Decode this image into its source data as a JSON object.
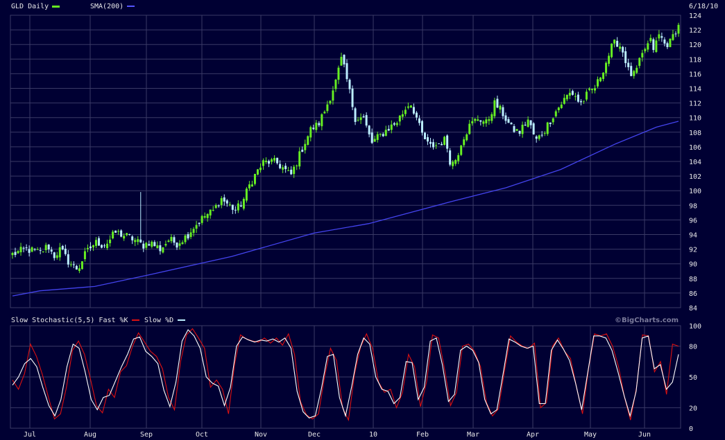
{
  "date_label": "6/18/10",
  "copyright": "©BigCharts.com",
  "price_panel": {
    "legend": [
      {
        "label": "GLD Daily",
        "color": "#66ee22"
      },
      {
        "label": "SMA(200)",
        "color": "#5555ff"
      }
    ]
  },
  "stoch_panel": {
    "legend": [
      {
        "label": "Slow Stochastic(5,5) Fast %K",
        "color": "#dd1111"
      },
      {
        "label": "Slow %D",
        "color": "#bbeeff"
      }
    ]
  },
  "colors": {
    "background": "#000033",
    "grid": "#3a3a66",
    "up": "#66ee22",
    "down": "#bbeeff",
    "sma": "#4444ee",
    "fastk": "#dd1111",
    "slowd": "#ffffff"
  },
  "chart_data": [
    {
      "type": "candlestick",
      "title": "GLD Daily",
      "x_tick_labels": [
        "Jul",
        "Aug",
        "Sep",
        "Oct",
        "Nov",
        "Dec",
        "10",
        "Feb",
        "Mar",
        "Apr",
        "May",
        "Jun"
      ],
      "y_tick_labels": [
        "84",
        "86",
        "88",
        "90",
        "92",
        "94",
        "96",
        "98",
        "100",
        "102",
        "104",
        "106",
        "108",
        "110",
        "112",
        "114",
        "116",
        "118",
        "120",
        "122",
        "124"
      ],
      "ylim": [
        84,
        124
      ],
      "price_path": [
        [
          0,
          91.3
        ],
        [
          10,
          92
        ],
        [
          20,
          91.5
        ],
        [
          26,
          92.5
        ],
        [
          30,
          91
        ],
        [
          35,
          92
        ],
        [
          40,
          90.5
        ],
        [
          45,
          89.5
        ],
        [
          48,
          89.3
        ],
        [
          52,
          91
        ],
        [
          58,
          92.5
        ],
        [
          62,
          93
        ],
        [
          66,
          92.5
        ],
        [
          70,
          93
        ],
        [
          75,
          94.3
        ],
        [
          80,
          94
        ],
        [
          88,
          93.4
        ],
        [
          95,
          92.5
        ],
        [
          100,
          93
        ],
        [
          108,
          92
        ],
        [
          114,
          93.3
        ],
        [
          120,
          92.8
        ],
        [
          127,
          93.8
        ],
        [
          132,
          95
        ],
        [
          140,
          96.5
        ],
        [
          147,
          97.3
        ],
        [
          152,
          99
        ],
        [
          158,
          98
        ],
        [
          163,
          97.3
        ],
        [
          168,
          98.5
        ],
        [
          173,
          100.8
        ],
        [
          178,
          102.5
        ],
        [
          183,
          103.8
        ],
        [
          188,
          104
        ],
        [
          193,
          103.8
        ],
        [
          198,
          103
        ],
        [
          203,
          102
        ],
        [
          208,
          104.2
        ],
        [
          213,
          106.5
        ],
        [
          218,
          108.5
        ],
        [
          223,
          109
        ],
        [
          228,
          111
        ],
        [
          232,
          113
        ],
        [
          236,
          115
        ],
        [
          240,
          118
        ],
        [
          243,
          116
        ],
        [
          246,
          113.5
        ],
        [
          250,
          110
        ],
        [
          256,
          110
        ],
        [
          262,
          106.5
        ],
        [
          268,
          107.5
        ],
        [
          274,
          108.5
        ],
        [
          280,
          109.3
        ],
        [
          286,
          111
        ],
        [
          290,
          112.2
        ],
        [
          294,
          110.5
        ],
        [
          298,
          108
        ],
        [
          304,
          106
        ],
        [
          310,
          106.3
        ],
        [
          316,
          107
        ],
        [
          320,
          103.5
        ],
        [
          324,
          104.5
        ],
        [
          328,
          107
        ],
        [
          334,
          109
        ],
        [
          340,
          110
        ],
        [
          346,
          109.2
        ],
        [
          352,
          112
        ],
        [
          358,
          110.5
        ],
        [
          364,
          108.5
        ],
        [
          370,
          108
        ],
        [
          376,
          109.8
        ],
        [
          382,
          106.8
        ],
        [
          388,
          108.2
        ],
        [
          394,
          110.2
        ],
        [
          400,
          111.8
        ],
        [
          406,
          113.3
        ],
        [
          410,
          113.3
        ],
        [
          414,
          111.8
        ],
        [
          420,
          113.3
        ],
        [
          426,
          114.3
        ],
        [
          430,
          116.2
        ],
        [
          434,
          118
        ],
        [
          438,
          120
        ],
        [
          442,
          120.3
        ],
        [
          446,
          118.8
        ],
        [
          450,
          116
        ],
        [
          454,
          115.8
        ],
        [
          458,
          117.8
        ],
        [
          462,
          119.6
        ],
        [
          466,
          120.5
        ],
        [
          468,
          119.3
        ],
        [
          472,
          121.4
        ],
        [
          476,
          120
        ],
        [
          480,
          120.3
        ],
        [
          484,
          122
        ],
        [
          486,
          122.5
        ]
      ],
      "sma200_values": [
        [
          0,
          85.6
        ],
        [
          20,
          86.3
        ],
        [
          60,
          86.9
        ],
        [
          100,
          88.5
        ],
        [
          160,
          91
        ],
        [
          220,
          94.2
        ],
        [
          260,
          95.5
        ],
        [
          320,
          98.5
        ],
        [
          360,
          100.4
        ],
        [
          400,
          102.9
        ],
        [
          440,
          106.4
        ],
        [
          470,
          108.7
        ],
        [
          486,
          109.5
        ]
      ],
      "legend": [
        "GLD Daily",
        "SMA(200)"
      ]
    },
    {
      "type": "line",
      "title": "Slow Stochastic(5,5)",
      "y_tick_labels": [
        "0",
        "20",
        "50",
        "80",
        "100"
      ],
      "ylim": [
        0,
        100
      ],
      "series": [
        {
          "name": "Fast %K",
          "values": [
            47,
            38,
            53,
            82,
            70,
            52,
            30,
            9,
            14,
            40,
            76,
            85,
            72,
            48,
            22,
            15,
            38,
            30,
            55,
            61,
            80,
            93,
            84,
            75,
            70,
            58,
            30,
            18,
            65,
            91,
            97,
            88,
            78,
            40,
            47,
            38,
            14,
            62,
            91,
            87,
            85,
            84,
            88,
            83,
            88,
            81,
            92,
            72,
            26,
            13,
            9,
            14,
            50,
            78,
            66,
            20,
            8,
            53,
            79,
            92,
            78,
            45,
            35,
            38,
            20,
            35,
            72,
            60,
            21,
            45,
            91,
            88,
            58,
            22,
            35,
            80,
            82,
            75,
            60,
            25,
            12,
            19,
            56,
            90,
            84,
            80,
            78,
            83,
            20,
            25,
            80,
            88,
            75,
            68,
            40,
            14,
            58,
            92,
            90,
            92,
            80,
            60,
            30,
            8,
            40,
            91,
            90,
            55,
            65,
            33,
            82,
            80
          ]
        },
        {
          "name": "Slow %D",
          "values": [
            42,
            50,
            63,
            68,
            60,
            40,
            22,
            12,
            28,
            60,
            82,
            78,
            55,
            28,
            18,
            30,
            32,
            46,
            60,
            72,
            87,
            89,
            75,
            70,
            63,
            37,
            21,
            45,
            85,
            96,
            90,
            78,
            50,
            44,
            41,
            22,
            40,
            80,
            89,
            86,
            84,
            86,
            85,
            87,
            84,
            88,
            78,
            36,
            16,
            10,
            12,
            38,
            70,
            72,
            30,
            12,
            40,
            72,
            88,
            82,
            50,
            38,
            36,
            24,
            30,
            65,
            64,
            28,
            40,
            85,
            88,
            62,
            26,
            33,
            76,
            80,
            76,
            64,
            28,
            14,
            18,
            52,
            87,
            84,
            80,
            78,
            80,
            24,
            24,
            76,
            86,
            77,
            66,
            44,
            18,
            54,
            90,
            90,
            88,
            76,
            55,
            32,
            12,
            36,
            88,
            90,
            58,
            62,
            38,
            45,
            72
          ]
        }
      ],
      "legend": [
        "Slow Stochastic(5,5) Fast %K",
        "Slow %D"
      ]
    }
  ]
}
